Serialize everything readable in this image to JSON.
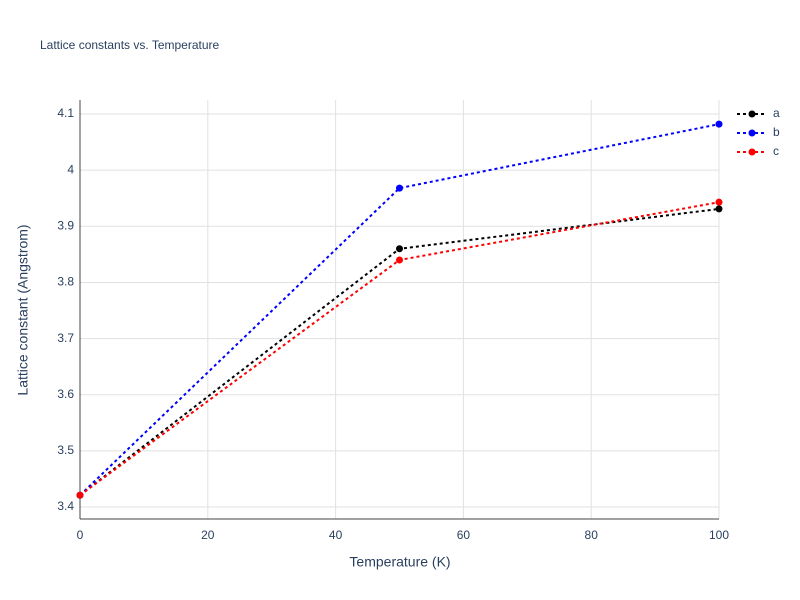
{
  "chart_data": {
    "type": "line",
    "title": "Lattice constants vs. Temperature",
    "x_label": "Temperature (K)",
    "y_label": "Lattice constant (Angstrom)",
    "x": [
      0,
      50,
      100
    ],
    "series": [
      {
        "name": "a",
        "color": "#000000",
        "values": [
          3.421,
          3.86,
          3.931
        ]
      },
      {
        "name": "b",
        "color": "#0000ff",
        "values": [
          3.421,
          3.968,
          4.082
        ]
      },
      {
        "name": "c",
        "color": "#ff0000",
        "values": [
          3.421,
          3.84,
          3.943
        ]
      }
    ],
    "xlim": [
      0,
      100
    ],
    "xticks": [
      0,
      20,
      40,
      60,
      80,
      100
    ],
    "ylim": [
      3.3786,
      4.125
    ],
    "yticks": [
      3.4,
      3.5,
      3.6,
      3.7,
      3.8,
      3.9,
      4,
      4.1
    ],
    "grid": true,
    "line_style": "dotted",
    "legend": "top-right"
  }
}
